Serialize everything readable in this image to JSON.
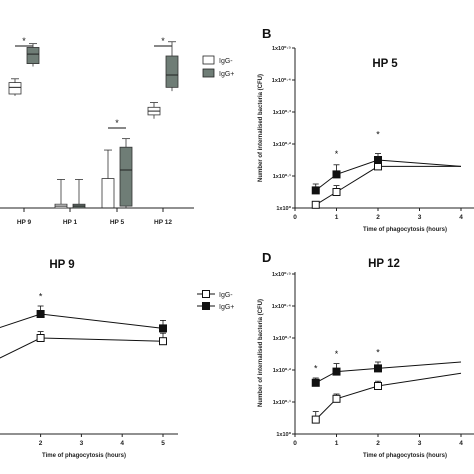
{
  "panels": {
    "A": {
      "type": "box",
      "categories": [
        "HP 9",
        "HP 1",
        "HP 5",
        "HP 12"
      ],
      "legend": [
        "IgG-",
        "IgG+"
      ],
      "significance": [
        "*",
        "*",
        "*"
      ],
      "colors": {
        "igg_minus": "#ffffff",
        "igg_plus": "#6f7d76"
      }
    },
    "B": {
      "label": "B",
      "title": "HP 5",
      "ylabel": "Number of internalised bacteria (CFU)",
      "xlabel": "Time of phagocytosis (hours)",
      "yticks": [
        "1x10⁰",
        "1x10⁰·¹",
        "1x10⁰·²",
        "1x10⁰·³",
        "1x10⁰·⁴",
        "1x10⁰·⁵"
      ],
      "xticks": [
        "0",
        "1",
        "2",
        "3",
        "4"
      ],
      "significance": [
        "*",
        "*"
      ]
    },
    "C": {
      "title": "HP 9",
      "xlabel": "Time of phagocytosis (hours)",
      "xticks": [
        "2",
        "3",
        "4",
        "5"
      ],
      "legend": [
        "IgG-",
        "IgG+"
      ],
      "significance": [
        "*"
      ]
    },
    "D": {
      "label": "D",
      "title": "HP 12",
      "ylabel": "Number of internalised bacteria (CFU)",
      "xlabel": "Time of phagocytosis (hours)",
      "yticks": [
        "1x10⁰",
        "1x10⁰·¹",
        "1x10⁰·²",
        "1x10⁰·³",
        "1x10⁰·⁴",
        "1x10⁰·⁵"
      ],
      "xticks": [
        "0",
        "1",
        "2",
        "3",
        "4"
      ],
      "significance": [
        "*",
        "*",
        "*"
      ]
    }
  },
  "chart_data": [
    {
      "type": "box",
      "categories": [
        "HP 9",
        "HP 1",
        "HP 5",
        "HP 12"
      ],
      "series": [
        {
          "name": "IgG-",
          "boxes": [
            {
              "min": 0.59,
              "q1": 0.6,
              "median": 0.635,
              "q3": 0.66,
              "max": 0.68
            },
            {
              "min": 0.0,
              "q1": 0.0,
              "median": 0.01,
              "q3": 0.02,
              "max": 0.15
            },
            {
              "min": 0.0,
              "q1": 0.0,
              "median": 0.0,
              "q3": 0.155,
              "max": 0.305
            },
            {
              "min": 0.47,
              "q1": 0.49,
              "median": 0.51,
              "q3": 0.53,
              "max": 0.555
            }
          ]
        },
        {
          "name": "IgG+",
          "boxes": [
            {
              "min": 0.745,
              "q1": 0.76,
              "median": 0.81,
              "q3": 0.845,
              "max": 0.865
            },
            {
              "min": 0.0,
              "q1": 0.0,
              "median": 0.01,
              "q3": 0.02,
              "max": 0.15
            },
            {
              "min": 0.0,
              "q1": 0.01,
              "median": 0.2,
              "q3": 0.32,
              "max": 0.365
            },
            {
              "min": 0.615,
              "q1": 0.635,
              "median": 0.7,
              "q3": 0.8,
              "max": 0.875
            }
          ]
        }
      ],
      "legend": [
        "IgG-",
        "IgG+"
      ]
    },
    {
      "type": "line",
      "title": "HP 5",
      "xlabel": "Time of phagocytosis (hours)",
      "ylabel": "Number of internalised bacteria (CFU)",
      "log_y": true,
      "xlim": [
        0,
        4
      ],
      "series": [
        {
          "name": "IgG-",
          "x": [
            0.5,
            1,
            2,
            4
          ],
          "y": [
            0.02,
            0.1,
            0.26,
            0.26
          ],
          "err": [
            0.02,
            0.04,
            0.03,
            0.0
          ]
        },
        {
          "name": "IgG+",
          "x": [
            0.5,
            1,
            2,
            4
          ],
          "y": [
            0.11,
            0.21,
            0.3,
            0.26
          ],
          "err": [
            0.04,
            0.06,
            0.04,
            0.0
          ]
        }
      ]
    },
    {
      "type": "line",
      "title": "HP 9",
      "xlabel": "Time of phagocytosis (hours)",
      "xlim": [
        0,
        5
      ],
      "series": [
        {
          "name": "IgG-",
          "x": [
            0,
            2,
            5
          ],
          "y": [
            0.35,
            0.6,
            0.58
          ],
          "err": [
            0.0,
            0.04,
            0.05
          ]
        },
        {
          "name": "IgG+",
          "x": [
            0,
            2,
            5
          ],
          "y": [
            0.58,
            0.75,
            0.66
          ],
          "err": [
            0.0,
            0.05,
            0.05
          ]
        }
      ],
      "legend": [
        "IgG-",
        "IgG+"
      ]
    },
    {
      "type": "line",
      "title": "HP 12",
      "xlabel": "Time of phagocytosis (hours)",
      "ylabel": "Number of internalised bacteria (CFU)",
      "log_y": true,
      "xlim": [
        0,
        4
      ],
      "series": [
        {
          "name": "IgG-",
          "x": [
            0.5,
            1,
            2,
            4
          ],
          "y": [
            0.09,
            0.22,
            0.3,
            0.38
          ],
          "err": [
            0.05,
            0.03,
            0.03,
            0.0
          ]
        },
        {
          "name": "IgG+",
          "x": [
            0.5,
            1,
            2,
            4
          ],
          "y": [
            0.32,
            0.39,
            0.41,
            0.45
          ],
          "err": [
            0.03,
            0.05,
            0.04,
            0.0
          ]
        }
      ]
    }
  ]
}
